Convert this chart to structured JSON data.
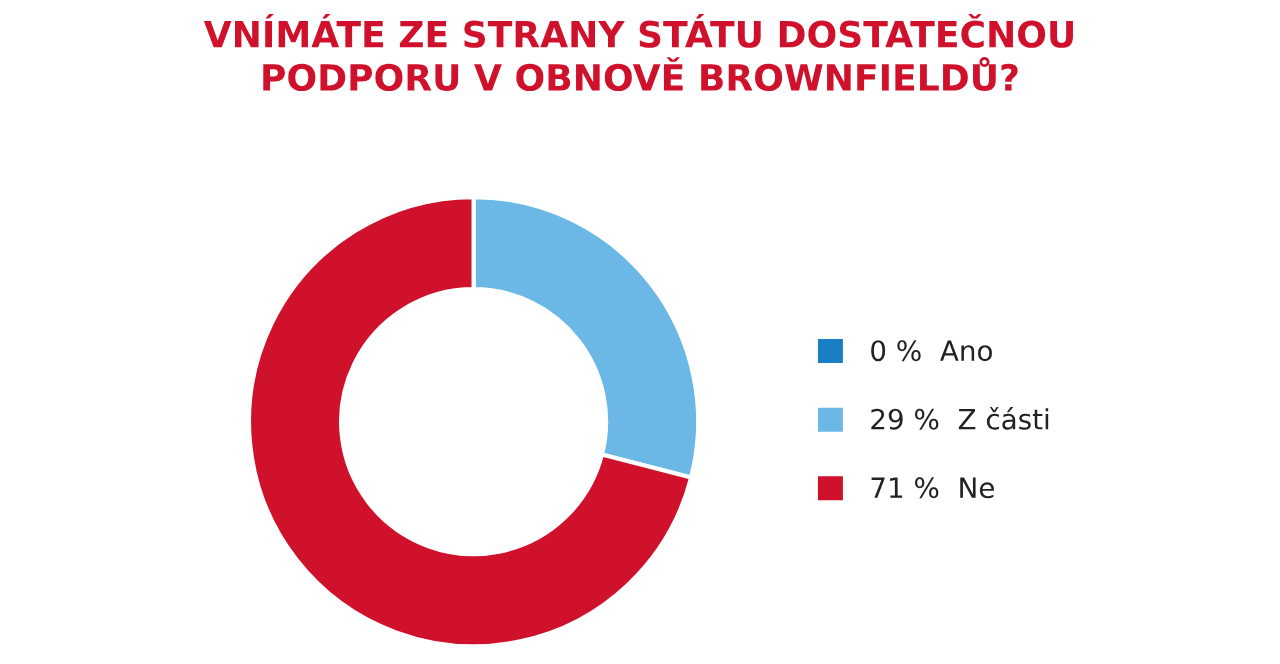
{
  "chart_data": {
    "type": "donut",
    "title": "VNÍMÁTE ZE STRANY STÁTU DOSTATEČNOU\nPODPORU V OBNOVĚ BROWNFIELDŮ?",
    "categories": [
      "Ano",
      "Z části",
      "Ne"
    ],
    "values": [
      0,
      29,
      71
    ],
    "value_labels": [
      "0 %",
      "29 %",
      "71 %"
    ],
    "colors": [
      "#1a7fc4",
      "#6bb8e6",
      "#d0112b"
    ],
    "legend": "right"
  }
}
